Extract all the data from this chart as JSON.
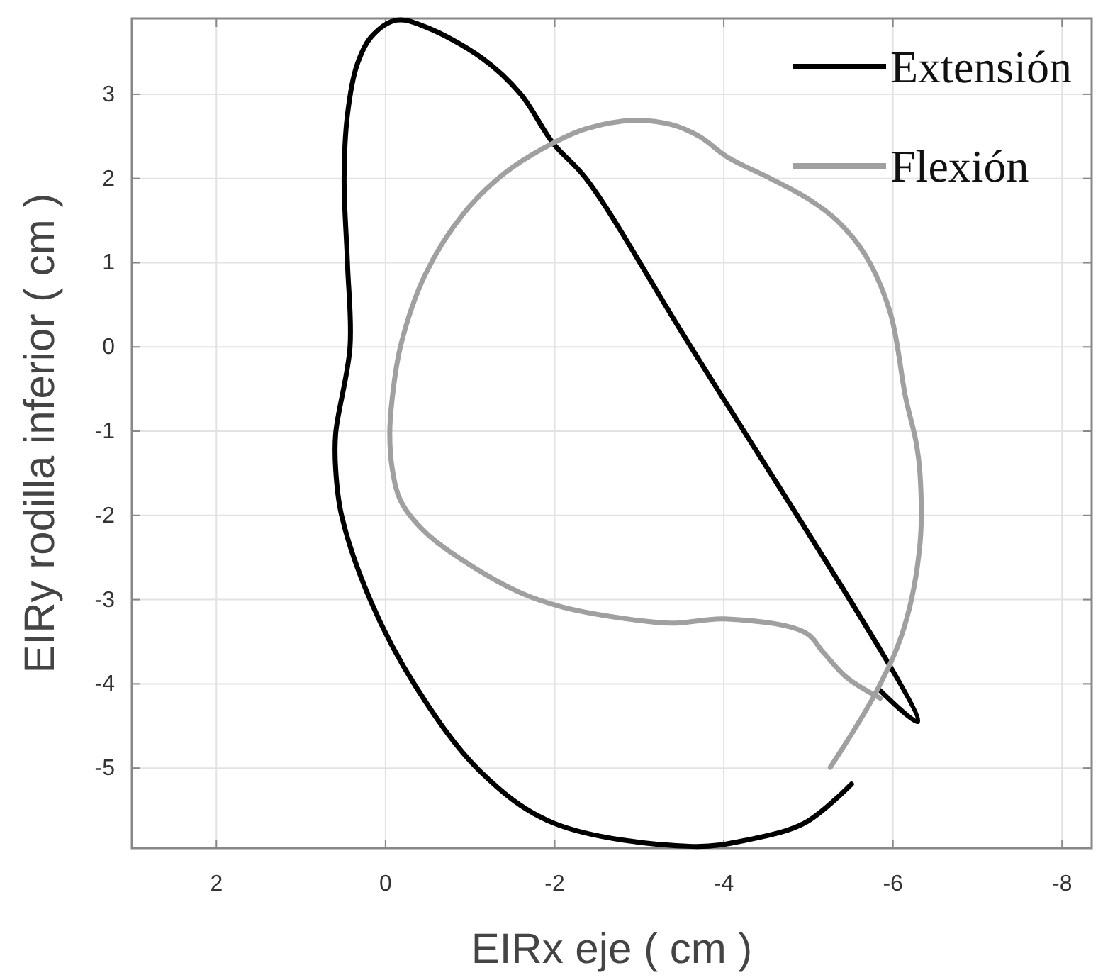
{
  "chart_data": {
    "type": "line",
    "xlabel": "EIRx eje ( cm )",
    "ylabel": "EIRy rodilla inferior ( cm )",
    "xlim": [
      3,
      -8.35
    ],
    "ylim": [
      -5.95,
      3.9
    ],
    "xticks": [
      2,
      0,
      -2,
      -4,
      -6,
      -8
    ],
    "yticks": [
      -5,
      -4,
      -3,
      -2,
      -1,
      0,
      1,
      2,
      3
    ],
    "grid": true,
    "legend": "top right",
    "line_style": "solid",
    "series": [
      {
        "name": "Extensión",
        "color": "#000000",
        "x": [
          -5.85,
          -6.29,
          -3.5,
          -2.37,
          -1.98,
          -1.6,
          -1.14,
          -0.47,
          -0.13,
          0.17,
          0.34,
          0.45,
          0.49,
          0.45,
          0.42,
          0.59,
          0.59,
          0.52,
          0.17,
          -0.35,
          -1.11,
          -1.98,
          -3.63,
          -4.29,
          -4.96,
          -5.51
        ],
        "values": [
          -4.08,
          -4.45,
          0.18,
          2.0,
          2.42,
          3.0,
          3.43,
          3.8,
          3.88,
          3.68,
          3.34,
          2.76,
          2.0,
          0.99,
          0,
          -1.03,
          -1.45,
          -2.0,
          -3.03,
          -4.02,
          -5.03,
          -5.65,
          -5.93,
          -5.85,
          -5.65,
          -5.19
        ]
      },
      {
        "name": "Flexión",
        "color": "#a0a0a0",
        "x": [
          -5.26,
          -5.8,
          -6.13,
          -6.32,
          -6.32,
          -6.27,
          -6.15,
          -5.97,
          -5.68,
          -5.34,
          -5.01,
          -4.55,
          -4.05,
          -3.71,
          -3.38,
          -2.94,
          -2.37,
          -1.98,
          -1.43,
          -0.92,
          -0.47,
          -0.18,
          -0.08,
          -0.05,
          -0.08,
          -0.18,
          -0.47,
          -0.97,
          -1.6,
          -2.1,
          -2.94,
          -3.38,
          -4.05,
          -4.96,
          -5.18,
          -5.46,
          -5.85
        ],
        "values": [
          -4.99,
          -4.1,
          -3.34,
          -2.34,
          -1.5,
          -1.11,
          -0.6,
          0.4,
          1.08,
          1.5,
          1.75,
          2.0,
          2.25,
          2.5,
          2.64,
          2.69,
          2.59,
          2.42,
          2.08,
          1.58,
          0.86,
          0.02,
          -0.6,
          -1.03,
          -1.45,
          -1.83,
          -2.2,
          -2.57,
          -2.92,
          -3.09,
          -3.24,
          -3.28,
          -3.23,
          -3.39,
          -3.63,
          -3.93,
          -4.17
        ]
      }
    ]
  }
}
